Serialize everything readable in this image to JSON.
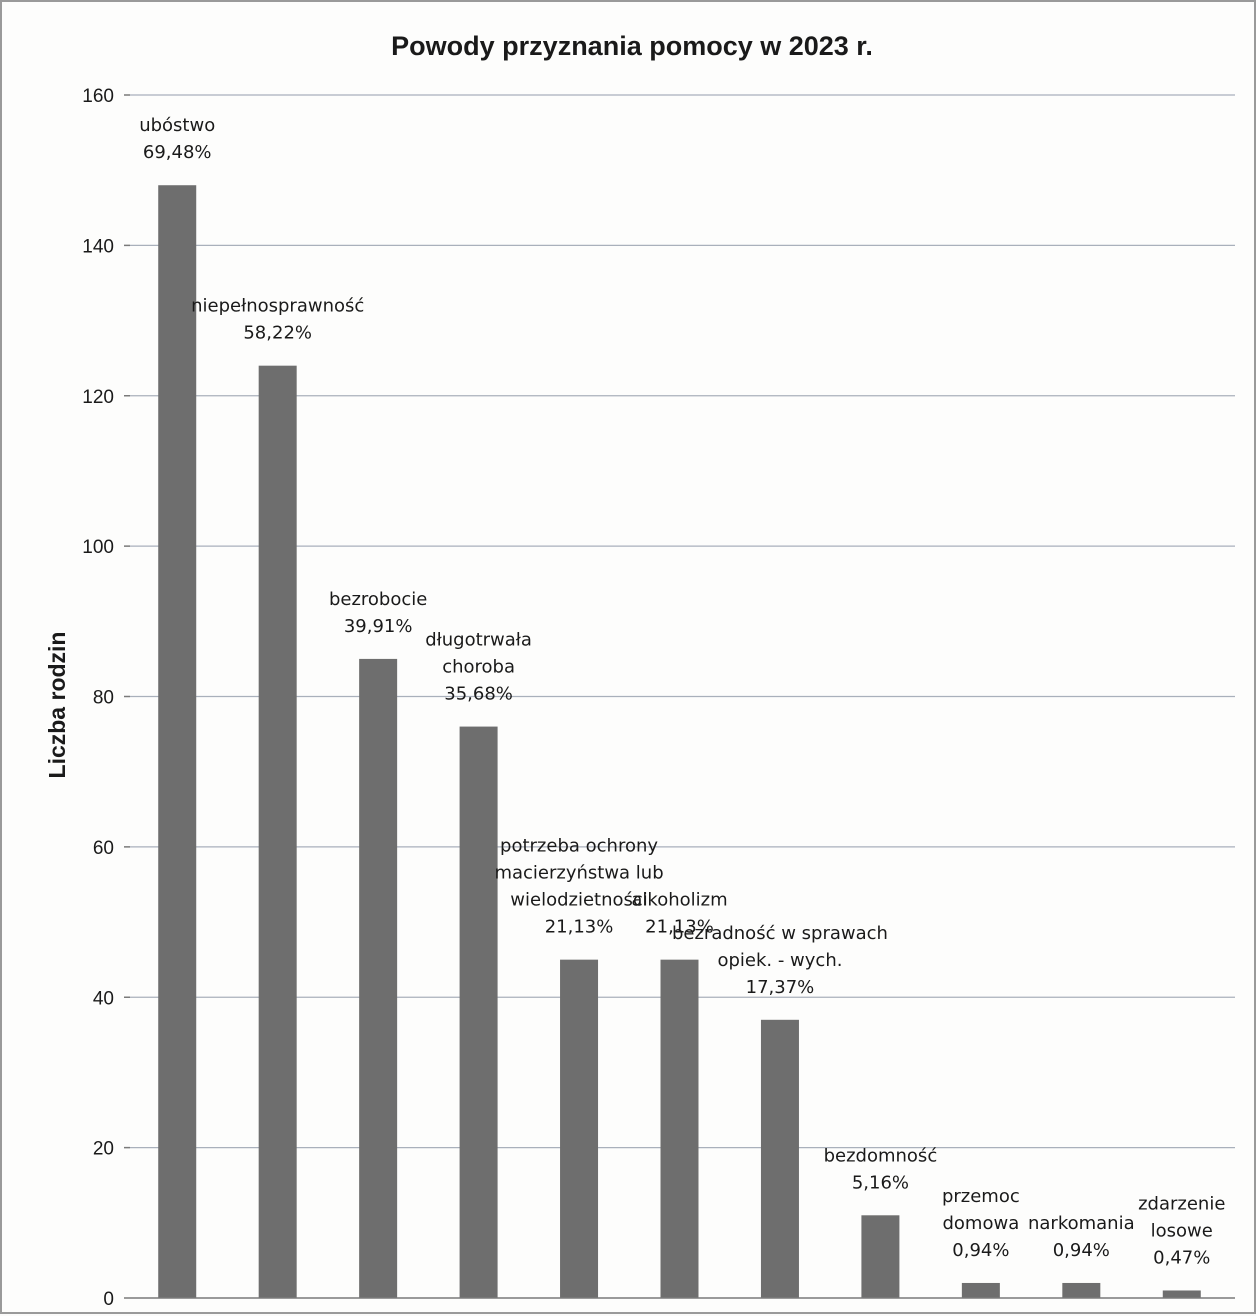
{
  "chart_data": {
    "type": "bar",
    "title": "Powody przyznania pomocy w 2023 r.",
    "xlabel": "",
    "ylabel": "Liczba rodzin",
    "ylim": [
      0,
      160
    ],
    "y_ticks": [
      0,
      20,
      40,
      60,
      80,
      100,
      120,
      140,
      160
    ],
    "grid": true,
    "legend": "none",
    "bar_color": "#6e6e6e",
    "categories": [
      "ubóstwo",
      "niepełnosprawność",
      "bezrobocie",
      "długotrwała choroba",
      "potrzeba ochrony macierzyństwa lub wielodzietności",
      "alkoholizm",
      "bezradność w sprawach opiek. - wych.",
      "bezdomność",
      "przemoc domowa",
      "narkomania",
      "zdarzenie losowe"
    ],
    "values": [
      148,
      124,
      85,
      76,
      45,
      45,
      37,
      11,
      2,
      2,
      1
    ],
    "data_labels": [
      [
        "ubóstwo",
        "69,48%"
      ],
      [
        "niepełnosprawność",
        "58,22%"
      ],
      [
        "bezrobocie",
        "39,91%"
      ],
      [
        "długotrwała",
        "choroba",
        "35,68%"
      ],
      [
        "potrzeba ochrony",
        "macierzyństwa lub",
        "wielodzietności",
        "21,13%"
      ],
      [
        "alkoholizm",
        "21,13%"
      ],
      [
        "bezradność w sprawach",
        "opiek. - wych.",
        "17,37%"
      ],
      [
        "bezdomność",
        "5,16%"
      ],
      [
        "przemoc",
        "domowa",
        "0,94%"
      ],
      [
        "narkomania",
        "0,94%"
      ],
      [
        "zdarzenie",
        "losowe",
        "0,47%"
      ]
    ]
  }
}
